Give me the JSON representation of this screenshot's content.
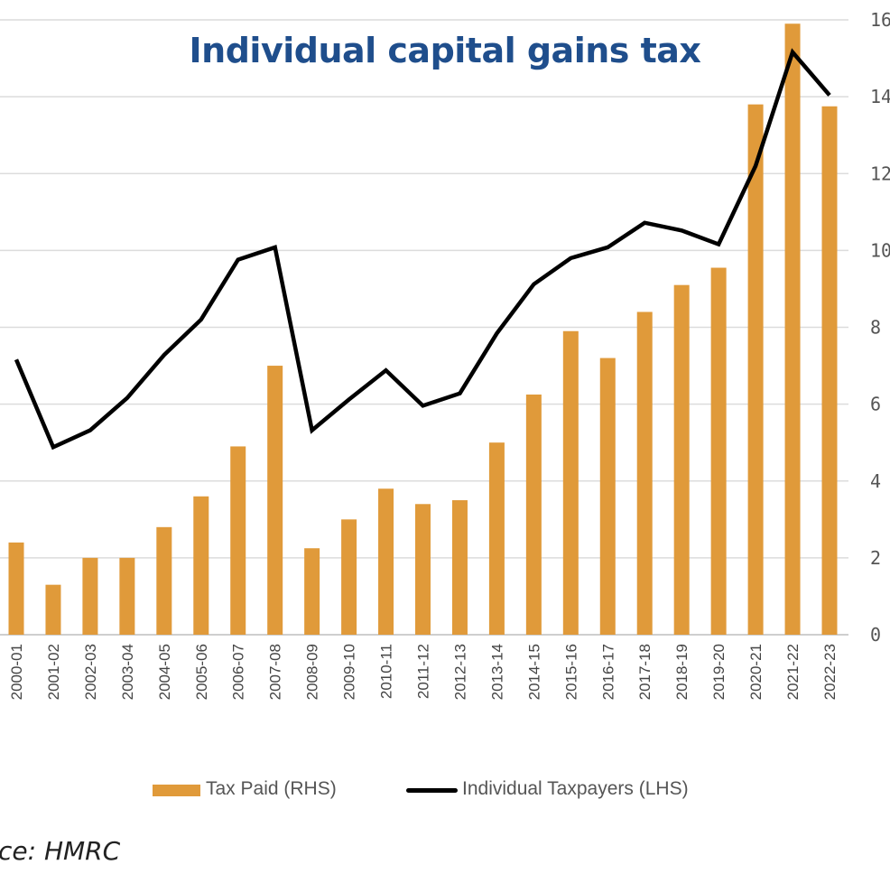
{
  "chart_data": {
    "type": "bar+line",
    "title": "Individual capital gains tax",
    "categories": [
      "2000-01",
      "2001-02",
      "2002-03",
      "2003-04",
      "2004-05",
      "2005-06",
      "2006-07",
      "2007-08",
      "2008-09",
      "2009-10",
      "2010-11",
      "2011-12",
      "2012-13",
      "2013-14",
      "2014-15",
      "2015-16",
      "2016-17",
      "2017-18",
      "2018-19",
      "2019-20",
      "2020-21",
      "2021-22",
      "2022-23"
    ],
    "series": [
      {
        "name": "Tax Paid (RHS)",
        "type": "bar",
        "axis": "right",
        "color": "#e09a3a",
        "values": [
          2.4,
          1.3,
          2.0,
          2.0,
          2.8,
          3.6,
          4.9,
          7.0,
          2.25,
          3.0,
          3.8,
          3.4,
          3.5,
          5.0,
          6.25,
          7.9,
          7.2,
          8.4,
          9.1,
          9.55,
          13.8,
          15.9,
          13.75
        ]
      },
      {
        "name": "Individual Taxpayers (LHS)",
        "type": "line",
        "axis": "left",
        "color": "#000000",
        "values": [
          179,
          122,
          133,
          154,
          182,
          205,
          244,
          252,
          133,
          153,
          172,
          149,
          157,
          196,
          228,
          245,
          252,
          268,
          263,
          254,
          305,
          379,
          351
        ]
      }
    ],
    "right_axis": {
      "ylim": [
        0,
        16
      ],
      "ticks": [
        "0",
        "2",
        "4",
        "6",
        "8",
        "10",
        "12",
        "14",
        "16"
      ]
    },
    "left_axis": {
      "ylim": [
        0,
        400
      ]
    },
    "grid": true,
    "legend": "bottom",
    "source": "ce: HMRC"
  }
}
